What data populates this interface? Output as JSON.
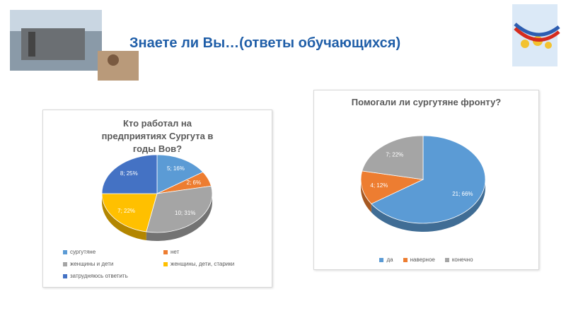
{
  "title": "Знаете ли Вы…(ответы обучающихся)",
  "chart_data": [
    {
      "type": "pie",
      "title": "Кто работал на предприятиях Сургута в годы Вов?",
      "categories": [
        "сургутяне",
        "нет",
        "женщины и дети",
        "женщины, дети, старики",
        "затрудняюсь ответить"
      ],
      "values": [
        5,
        2,
        10,
        7,
        8
      ],
      "value_labels": [
        "5; 16%",
        "2; 6%",
        "10; 31%",
        "7; 22%",
        "8; 25%"
      ],
      "colors": [
        "#5b9bd5",
        "#ed7d31",
        "#a5a5a5",
        "#ffc000",
        "#4472c4"
      ]
    },
    {
      "type": "pie",
      "title": "Помогали ли сургутяне фронту?",
      "categories": [
        "да",
        "наверное",
        "конечно"
      ],
      "values": [
        21,
        4,
        7
      ],
      "value_labels": [
        "21; 66%",
        "4; 12%",
        "7; 22%"
      ],
      "colors": [
        "#5b9bd5",
        "#ed7d31",
        "#a5a5a5"
      ]
    }
  ]
}
